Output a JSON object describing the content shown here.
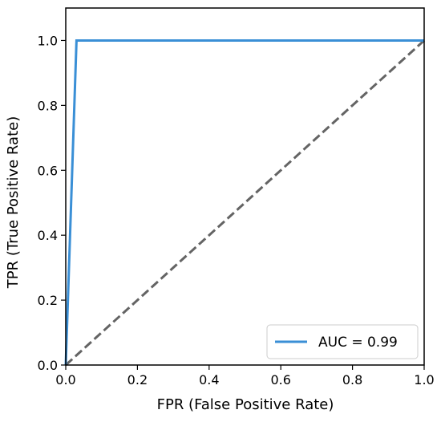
{
  "chart_data": {
    "type": "line",
    "title": "",
    "xlabel": "FPR (False Positive Rate)",
    "ylabel": "TPR (True Positive Rate)",
    "xlim": [
      0.0,
      1.0
    ],
    "ylim": [
      0.0,
      1.1
    ],
    "xticks": [
      "0.0",
      "0.2",
      "0.4",
      "0.6",
      "0.8",
      "1.0"
    ],
    "yticks": [
      "0.0",
      "0.2",
      "0.4",
      "0.6",
      "0.8",
      "1.0"
    ],
    "grid": false,
    "legend_position": "lower-right",
    "series": [
      {
        "name": "AUC = 0.99",
        "color": "#3a8fd6",
        "style": "solid",
        "x": [
          0.0,
          0.03,
          1.0
        ],
        "y": [
          0.0,
          1.0,
          1.0
        ]
      },
      {
        "color": "#646464",
        "style": "dashed",
        "x": [
          0.0,
          1.0
        ],
        "y": [
          0.0,
          1.0
        ]
      }
    ]
  }
}
